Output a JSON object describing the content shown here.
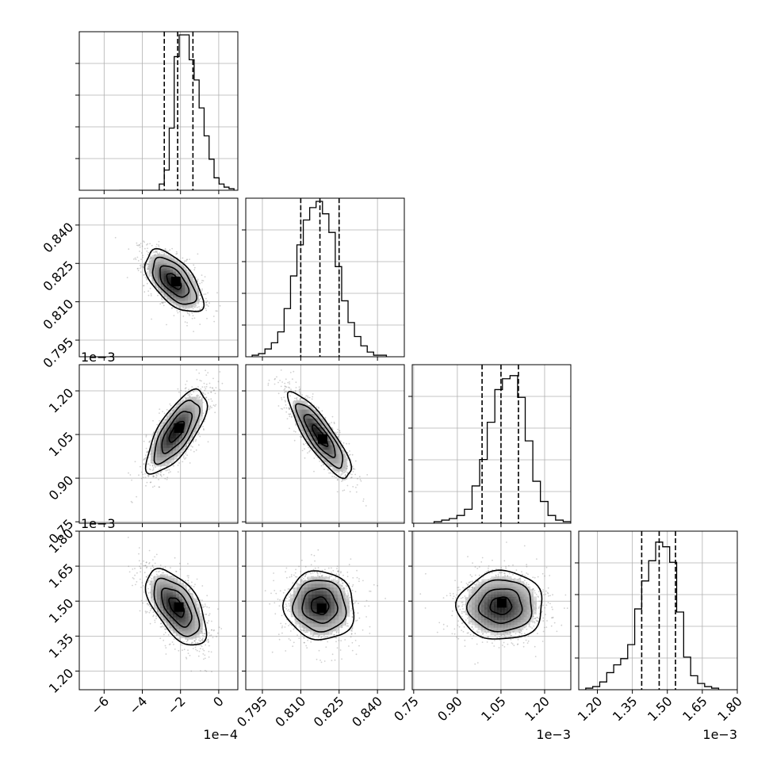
{
  "chart_data": {
    "type": "corner",
    "title": "",
    "parameters": [
      {
        "index": 0,
        "label": "",
        "range": [
          -7.3,
          1.0
        ],
        "ticks": [
          -6,
          -4,
          -2,
          0
        ],
        "tick_labels": [
          "−6",
          "−4",
          "−2",
          "0"
        ],
        "offset_label": "1e−4",
        "quantiles": [
          -2.85,
          -2.15,
          -1.35
        ],
        "hist_density": [
          0,
          0,
          0,
          0,
          0,
          0,
          0,
          0,
          0.04,
          0.13,
          0.4,
          0.86,
          1.0,
          1.0,
          0.84,
          0.71,
          0.53,
          0.35,
          0.2,
          0.08,
          0.04,
          0.02,
          0.01
        ],
        "hist_range": [
          -5.2,
          0.8
        ]
      },
      {
        "index": 1,
        "label": "",
        "range": [
          0.7885,
          0.8505
        ],
        "ticks": [
          0.795,
          0.81,
          0.825,
          0.84
        ],
        "tick_labels": [
          "0.795",
          "0.810",
          "0.825",
          "0.840"
        ],
        "offset_label": "",
        "quantiles": [
          0.81,
          0.8175,
          0.825
        ],
        "hist_density": [
          0.01,
          0.02,
          0.05,
          0.09,
          0.16,
          0.31,
          0.52,
          0.72,
          0.88,
          0.96,
          1.0,
          0.92,
          0.8,
          0.58,
          0.36,
          0.22,
          0.13,
          0.07,
          0.03,
          0.01,
          0.01
        ],
        "hist_range": [
          0.791,
          0.8435
        ]
      },
      {
        "index": 2,
        "label": "",
        "range": [
          0.745,
          1.29
        ],
        "ticks": [
          0.75,
          0.9,
          1.05,
          1.2
        ],
        "tick_labels": [
          "0.75",
          "0.90",
          "1.05",
          "1.20"
        ],
        "offset_label": "1e−3",
        "quantiles": [
          0.985,
          1.05,
          1.11
        ],
        "hist_density": [
          0.01,
          0.02,
          0.03,
          0.05,
          0.09,
          0.24,
          0.41,
          0.65,
          0.86,
          0.93,
          0.95,
          0.81,
          0.53,
          0.27,
          0.14,
          0.05,
          0.02,
          0.01
        ],
        "hist_range": [
          0.82,
          1.29
        ]
      },
      {
        "index": 3,
        "label": "",
        "range": [
          1.12,
          1.8
        ],
        "ticks": [
          1.2,
          1.35,
          1.5,
          1.65,
          1.8
        ],
        "tick_labels": [
          "1.20",
          "1.35",
          "1.50",
          "1.65",
          "1.80"
        ],
        "offset_label": "1e−3",
        "quantiles": [
          1.39,
          1.465,
          1.535
        ],
        "hist_density": [
          0.01,
          0.02,
          0.05,
          0.11,
          0.16,
          0.2,
          0.29,
          0.52,
          0.7,
          0.83,
          0.95,
          0.92,
          0.82,
          0.5,
          0.21,
          0.09,
          0.04,
          0.02,
          0.01
        ],
        "hist_range": [
          1.15,
          1.72
        ]
      }
    ],
    "pairs": [
      {
        "row": 1,
        "col": 0,
        "mean": [
          -2.35,
          0.818
        ],
        "sd": [
          0.72,
          0.0058
        ],
        "rho": -0.6
      },
      {
        "row": 2,
        "col": 0,
        "mean": [
          -2.2,
          1.06
        ],
        "sd": [
          0.75,
          0.068
        ],
        "rho": 0.72
      },
      {
        "row": 2,
        "col": 1,
        "mean": [
          0.8175,
          1.045
        ],
        "sd": [
          0.0058,
          0.07
        ],
        "rho": -0.85
      },
      {
        "row": 3,
        "col": 0,
        "mean": [
          -2.2,
          1.475
        ],
        "sd": [
          0.75,
          0.078
        ],
        "rho": -0.58
      },
      {
        "row": 3,
        "col": 1,
        "mean": [
          0.8175,
          1.48
        ],
        "sd": [
          0.0065,
          0.07
        ],
        "rho": -0.05
      },
      {
        "row": 3,
        "col": 2,
        "mean": [
          1.05,
          1.48
        ],
        "sd": [
          0.07,
          0.07
        ],
        "rho": 0.02
      }
    ],
    "contour_levels_sigma": [
      0.5,
      1.0,
      1.5,
      2.0
    ],
    "grid": true,
    "legend": "none"
  }
}
